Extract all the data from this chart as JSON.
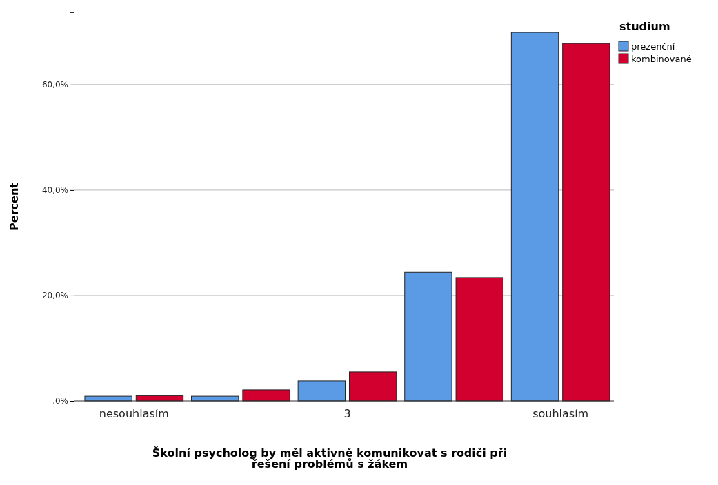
{
  "chart_data": {
    "type": "bar",
    "xlabel": "Školní psycholog by měl aktivně komunikovat s rodiči při řešení problémů s žákem",
    "ylabel": "Percent",
    "legend_title": "studium",
    "categories": [
      "nesouhlasím",
      null,
      "3",
      null,
      "souhlasím"
    ],
    "series": [
      {
        "name": "prezenční",
        "color": "#5b9be6",
        "values": [
          0.9,
          0.9,
          3.8,
          24.4,
          69.9
        ]
      },
      {
        "name": "kombinované",
        "color": "#d1002f",
        "values": [
          1.0,
          2.1,
          5.5,
          23.4,
          67.8
        ]
      }
    ],
    "ylim": [
      0,
      73.7
    ],
    "yticks": [
      {
        "value": 0,
        "label": ",0%"
      },
      {
        "value": 20,
        "label": "20,0%"
      },
      {
        "value": 40,
        "label": "40,0%"
      },
      {
        "value": 60,
        "label": "60,0%"
      }
    ],
    "grid": "y",
    "legend": "top right"
  }
}
